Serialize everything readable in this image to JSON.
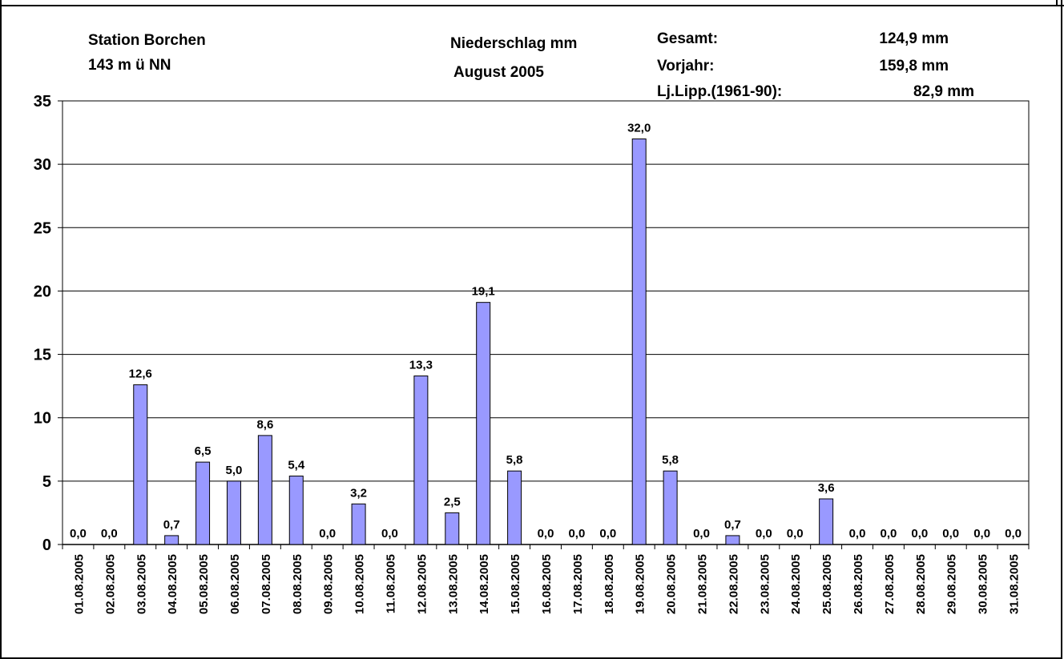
{
  "header": {
    "station": "Station Borchen",
    "elevation": "143 m ü NN",
    "title": "Niederschlag mm",
    "subtitle": "August 2005",
    "stats": [
      {
        "label": "Gesamt:",
        "value": "124,9 mm"
      },
      {
        "label": "Vorjahr:",
        "value": "159,8 mm"
      },
      {
        "label": "Lj.Lipp.(1961-90):",
        "value": "82,9 mm"
      }
    ]
  },
  "chart_data": {
    "type": "bar",
    "title": "Niederschlag mm",
    "xlabel": "",
    "ylabel": "",
    "ylim": [
      0,
      35
    ],
    "yticks": [
      0,
      5,
      10,
      15,
      20,
      25,
      30,
      35
    ],
    "grid": true,
    "bar_color": "#9999ff",
    "categories": [
      "01.08.2005",
      "02.08.2005",
      "03.08.2005",
      "04.08.2005",
      "05.08.2005",
      "06.08.2005",
      "07.08.2005",
      "08.08.2005",
      "09.08.2005",
      "10.08.2005",
      "11.08.2005",
      "12.08.2005",
      "13.08.2005",
      "14.08.2005",
      "15.08.2005",
      "16.08.2005",
      "17.08.2005",
      "18.08.2005",
      "19.08.2005",
      "20.08.2005",
      "21.08.2005",
      "22.08.2005",
      "23.08.2005",
      "24.08.2005",
      "25.08.2005",
      "26.08.2005",
      "27.08.2005",
      "28.08.2005",
      "29.08.2005",
      "30.08.2005",
      "31.08.2005"
    ],
    "values": [
      0.0,
      0.0,
      12.6,
      0.7,
      6.5,
      5.0,
      8.6,
      5.4,
      0.0,
      3.2,
      0.0,
      13.3,
      2.5,
      19.1,
      5.8,
      0.0,
      0.0,
      0.0,
      32.0,
      5.8,
      0.0,
      0.7,
      0.0,
      0.0,
      3.6,
      0.0,
      0.0,
      0.0,
      0.0,
      0.0,
      0.0
    ],
    "data_labels": [
      "0,0",
      "0,0",
      "12,6",
      "0,7",
      "6,5",
      "5,0",
      "8,6",
      "5,4",
      "0,0",
      "3,2",
      "0,0",
      "13,3",
      "2,5",
      "19,1",
      "5,8",
      "0,0",
      "0,0",
      "0,0",
      "32,0",
      "5,8",
      "0,0",
      "0,7",
      "0,0",
      "0,0",
      "3,6",
      "0,0",
      "0,0",
      "0,0",
      "0,0",
      "0,0",
      "0,0"
    ]
  }
}
